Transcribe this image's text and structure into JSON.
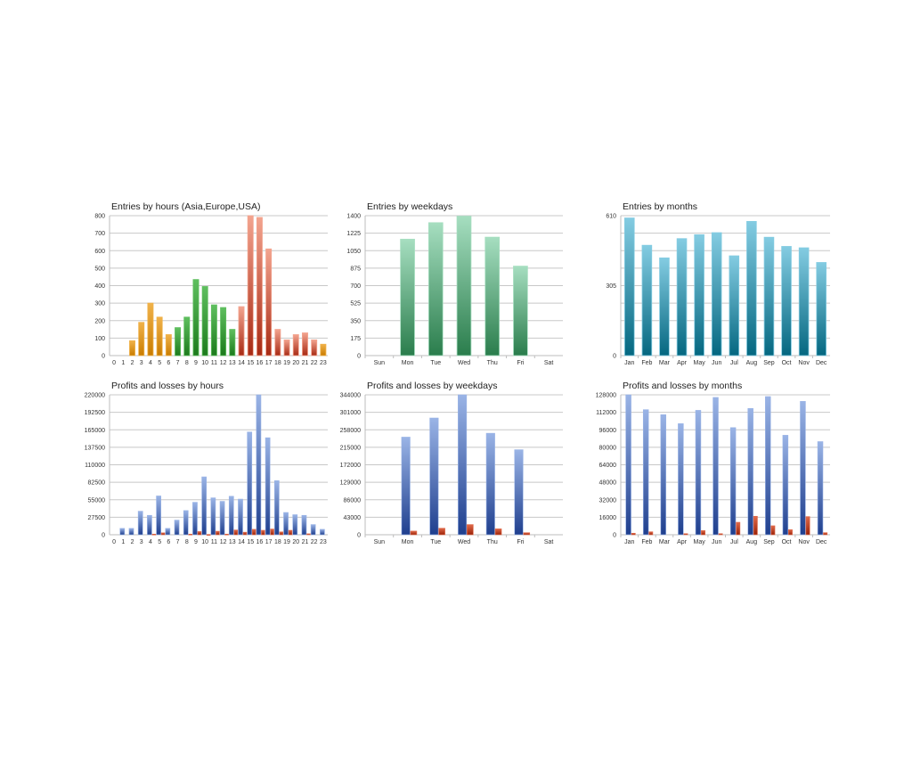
{
  "colors": {
    "hours_asia": [
      "#f0b24a",
      "#c97c00"
    ],
    "hours_europe": [
      "#5fbf5f",
      "#1c7a1c"
    ],
    "hours_usa": [
      "#f3a48f",
      "#a82a14"
    ],
    "weekdays_entries": [
      "#a6dec0",
      "#2a7d4c"
    ],
    "months_entries": [
      "#84cce2",
      "#046780"
    ],
    "profit": [
      "#9ab4e6",
      "#1f3f8e"
    ],
    "loss": [
      "#e06a4a",
      "#9a2208"
    ]
  },
  "chart_data": [
    {
      "id": "entries-hours",
      "type": "bar",
      "title": "Entries by hours (Asia,Europe,USA)",
      "categories": [
        "0",
        "1",
        "2",
        "3",
        "4",
        "5",
        "6",
        "7",
        "8",
        "9",
        "10",
        "11",
        "12",
        "13",
        "14",
        "15",
        "16",
        "17",
        "18",
        "19",
        "20",
        "21",
        "22",
        "23"
      ],
      "values": [
        0,
        0,
        85,
        190,
        300,
        220,
        120,
        160,
        220,
        435,
        395,
        290,
        275,
        150,
        280,
        800,
        790,
        610,
        150,
        90,
        120,
        130,
        90,
        65
      ],
      "bar_groups": [
        "asia",
        "asia",
        "asia",
        "asia",
        "asia",
        "asia",
        "asia",
        "europe",
        "europe",
        "europe",
        "europe",
        "europe",
        "europe",
        "europe",
        "usa",
        "usa",
        "usa",
        "usa",
        "usa",
        "usa",
        "usa",
        "usa",
        "usa",
        "asia"
      ],
      "ylim": [
        0,
        800
      ],
      "yticks": [
        "0",
        "100",
        "200",
        "300",
        "400",
        "500",
        "600",
        "700",
        "800"
      ],
      "grid": true
    },
    {
      "id": "entries-weekdays",
      "type": "bar",
      "title": "Entries by weekdays",
      "categories": [
        "Sun",
        "Mon",
        "Tue",
        "Wed",
        "Thu",
        "Fri",
        "Sat"
      ],
      "values": [
        0,
        1165,
        1330,
        1395,
        1185,
        895,
        0
      ],
      "ylim": [
        0,
        1400
      ],
      "yticks": [
        "0",
        "175",
        "350",
        "525",
        "700",
        "875",
        "1050",
        "1225",
        "1400"
      ],
      "grid": true
    },
    {
      "id": "entries-months",
      "type": "bar",
      "title": "Entries by months",
      "categories": [
        "Jan",
        "Feb",
        "Mar",
        "Apr",
        "May",
        "Jun",
        "Jul",
        "Aug",
        "Sep",
        "Oct",
        "Nov",
        "Dec"
      ],
      "values": [
        600,
        481,
        426,
        510,
        527,
        536,
        435,
        585,
        516,
        476,
        470,
        406
      ],
      "ylim": [
        0,
        610
      ],
      "yticks": [
        "0",
        "",
        "",
        "",
        "305",
        "",
        "",
        "",
        "610"
      ],
      "grid": true
    },
    {
      "id": "pl-hours",
      "type": "bar",
      "title": "Profits and losses by hours",
      "categories": [
        "0",
        "1",
        "2",
        "3",
        "4",
        "5",
        "6",
        "7",
        "8",
        "9",
        "10",
        "11",
        "12",
        "13",
        "14",
        "15",
        "16",
        "17",
        "18",
        "19",
        "20",
        "21",
        "22",
        "23"
      ],
      "series": [
        {
          "values": [
            0,
            10000,
            10000,
            37000,
            30500,
            61000,
            10000,
            23000,
            38000,
            51000,
            91000,
            58000,
            52500,
            60500,
            56000,
            161500,
            220000,
            152500,
            85000,
            35000,
            31500,
            30500,
            16000,
            8500
          ]
        },
        {
          "values": [
            0,
            0,
            0,
            0,
            1000,
            3000,
            0,
            0,
            1000,
            5000,
            500,
            5500,
            1000,
            7500,
            4000,
            8500,
            7000,
            9000,
            4500,
            7000,
            0,
            1500,
            0,
            0
          ]
        }
      ],
      "ylim": [
        0,
        220000
      ],
      "yticks": [
        "0",
        "27500",
        "55000",
        "82500",
        "110000",
        "137500",
        "165000",
        "192500",
        "220000"
      ],
      "grid": true
    },
    {
      "id": "pl-weekdays",
      "type": "bar",
      "title": "Profits and losses by weekdays",
      "categories": [
        "Sun",
        "Mon",
        "Tue",
        "Wed",
        "Thu",
        "Fri",
        "Sat"
      ],
      "series": [
        {
          "values": [
            0,
            240000,
            287000,
            344000,
            249500,
            209000,
            0
          ]
        },
        {
          "values": [
            0,
            9000,
            16000,
            25000,
            14500,
            5000,
            0
          ]
        }
      ],
      "ylim": [
        0,
        344000
      ],
      "yticks": [
        "0",
        "43000",
        "86000",
        "129000",
        "172000",
        "215000",
        "258000",
        "301000",
        "344000"
      ],
      "grid": true
    },
    {
      "id": "pl-months",
      "type": "bar",
      "title": "Profits and losses by months",
      "categories": [
        "Jan",
        "Feb",
        "Mar",
        "Apr",
        "May",
        "Jun",
        "Jul",
        "Aug",
        "Sep",
        "Oct",
        "Nov",
        "Dec"
      ],
      "series": [
        {
          "values": [
            128000,
            114400,
            109800,
            101600,
            113800,
            125600,
            98000,
            115500,
            126400,
            91000,
            122000,
            85200
          ]
        },
        {
          "values": [
            1400,
            2700,
            0,
            1000,
            3800,
            1000,
            11400,
            16900,
            8200,
            4600,
            16600,
            1900
          ]
        }
      ],
      "ylim": [
        0,
        128000
      ],
      "yticks": [
        "0",
        "16000",
        "32000",
        "48000",
        "64000",
        "80000",
        "96000",
        "112000",
        "128000"
      ],
      "grid": true
    }
  ]
}
